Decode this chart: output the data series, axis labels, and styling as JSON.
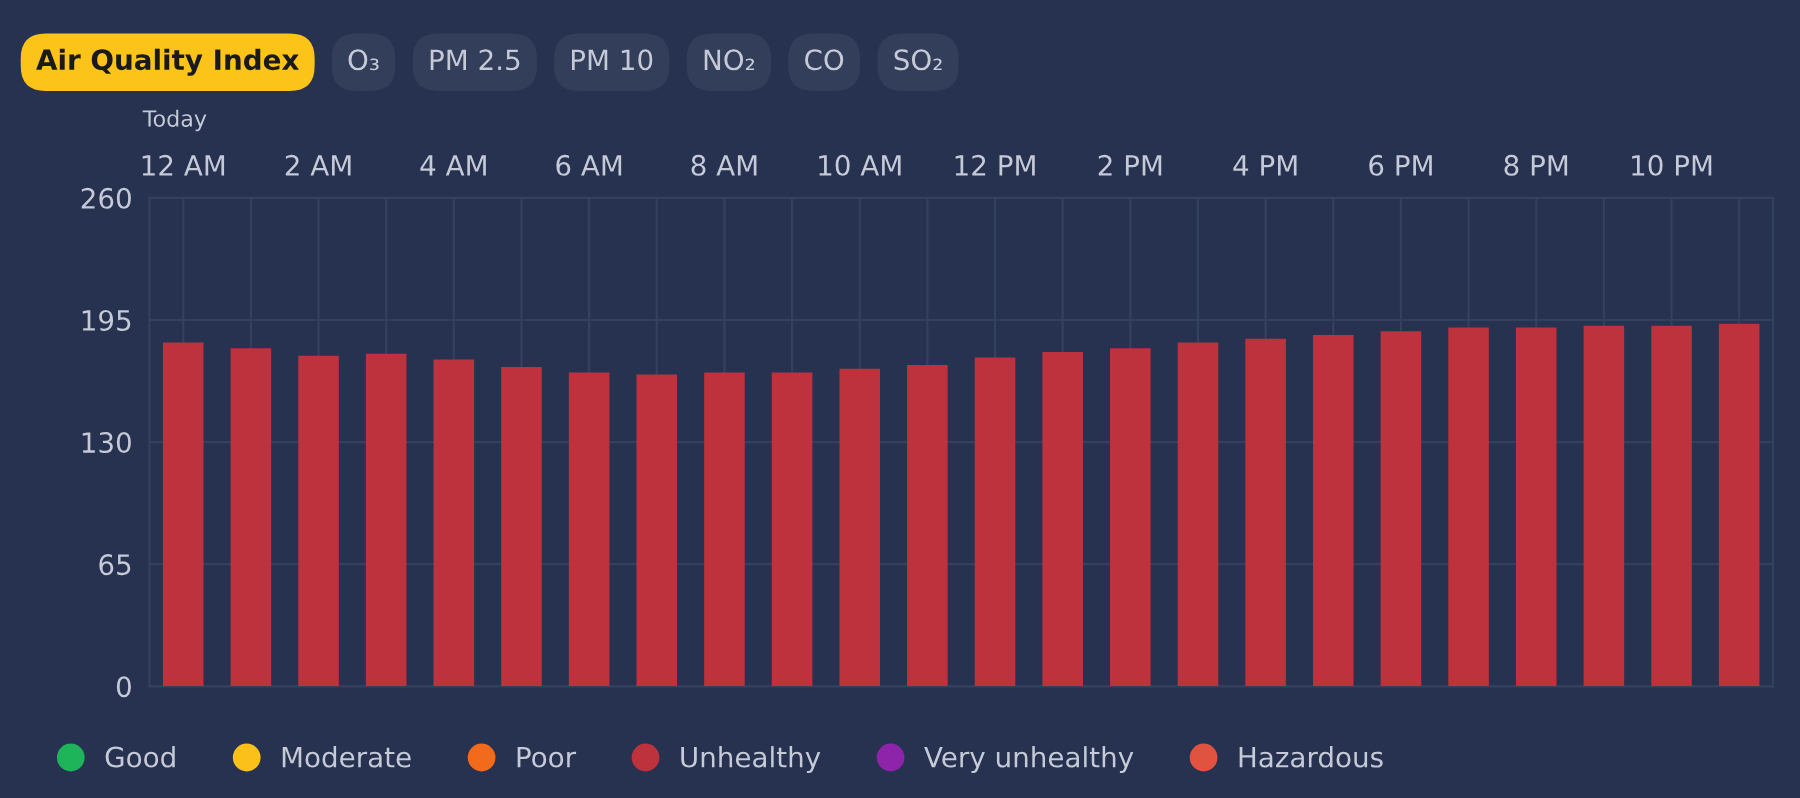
{
  "chart_data": {
    "type": "bar",
    "categories": [
      "12 AM",
      null,
      "2 AM",
      null,
      "4 AM",
      null,
      "6 AM",
      null,
      "8 AM",
      null,
      "10 AM",
      null,
      "12 PM",
      null,
      "2 PM",
      null,
      "4 PM",
      null,
      "6 PM",
      null,
      "8 PM",
      null,
      "10 PM",
      null
    ],
    "series": [
      {
        "name": "Good",
        "color": "#1db45a",
        "values": [
          null,
          null,
          null,
          null,
          null,
          null,
          null,
          null,
          null,
          null,
          null,
          null,
          null,
          null,
          null,
          null,
          null,
          null,
          null,
          null,
          null,
          null,
          null,
          null
        ]
      },
      {
        "name": "Moderate",
        "color": "#fbc11a",
        "values": [
          null,
          null,
          null,
          null,
          null,
          null,
          null,
          null,
          null,
          null,
          null,
          null,
          null,
          null,
          null,
          null,
          null,
          null,
          null,
          null,
          null,
          null,
          null,
          null
        ]
      },
      {
        "name": "Poor",
        "color": "#f26a1b",
        "values": [
          null,
          null,
          null,
          null,
          null,
          null,
          null,
          null,
          null,
          null,
          null,
          null,
          null,
          null,
          null,
          null,
          null,
          null,
          null,
          null,
          null,
          null,
          null,
          null
        ]
      },
      {
        "name": "Unhealthy",
        "color": "#bd323c",
        "values": [
          183,
          180,
          176,
          177,
          174,
          170,
          167,
          166,
          167,
          167,
          169,
          171,
          175,
          178,
          180,
          183,
          185,
          187,
          189,
          191,
          191,
          192,
          192,
          193
        ]
      },
      {
        "name": "Very unhealthy",
        "color": "#8e24aa",
        "values": [
          null,
          null,
          null,
          null,
          null,
          null,
          null,
          null,
          null,
          null,
          null,
          null,
          null,
          null,
          null,
          null,
          null,
          null,
          null,
          null,
          null,
          null,
          null,
          null
        ]
      },
      {
        "name": "Hazardous",
        "color": "#e0533f",
        "values": [
          null,
          null,
          null,
          null,
          null,
          null,
          null,
          null,
          null,
          null,
          null,
          null,
          null,
          null,
          null,
          null,
          null,
          null,
          null,
          null,
          null,
          null,
          null,
          null
        ]
      }
    ],
    "ylim": [
      0,
      260
    ],
    "yticks": [
      0,
      65,
      130,
      195,
      260
    ],
    "grid": true,
    "legend": "bottom",
    "annotations": [
      "Air Quality Index",
      "O₃",
      "PM 2.5",
      "PM 10",
      "NO₂",
      "CO",
      "SO₂",
      "Today"
    ]
  }
}
